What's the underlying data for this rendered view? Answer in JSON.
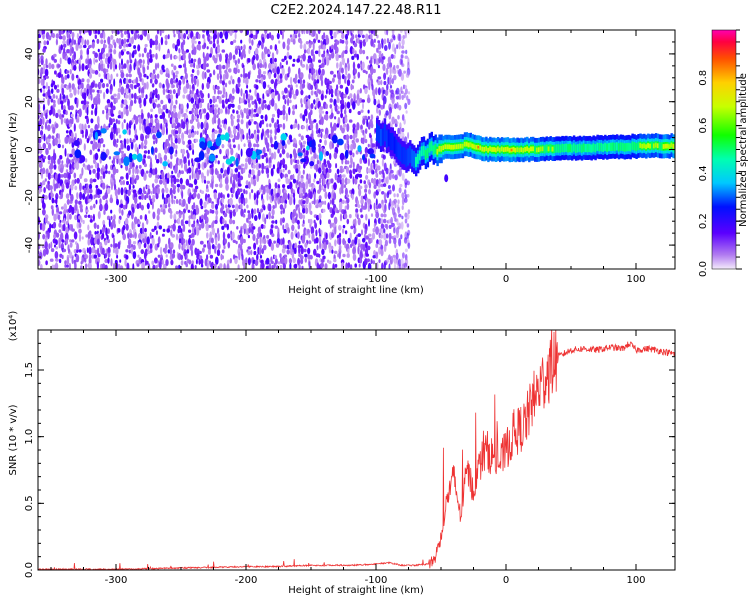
{
  "title": "C2E2.2024.147.22.48.R11",
  "chart_data": [
    {
      "type": "heatmap",
      "xlabel": "Height of straight line (km)",
      "ylabel": "Frequency (Hz)",
      "xlim": [
        -360,
        130
      ],
      "ylim": [
        -50,
        50
      ],
      "xticks": [
        -300,
        -200,
        -100,
        0,
        100
      ],
      "yticks": [
        -40,
        -20,
        0,
        20,
        40
      ],
      "noise_region_x": [
        -360,
        -75
      ],
      "tone_band": [
        {
          "x": -100,
          "y": 7,
          "amp": 0.4
        },
        {
          "x": -90,
          "y": 5,
          "amp": 0.3
        },
        {
          "x": -80,
          "y": -2,
          "amp": 0.35
        },
        {
          "x": -70,
          "y": -4,
          "amp": 0.45
        },
        {
          "x": -60,
          "y": 0,
          "amp": 0.6
        },
        {
          "x": -45,
          "y": 1,
          "amp": 0.8
        },
        {
          "x": -30,
          "y": 2,
          "amp": 0.75
        },
        {
          "x": -15,
          "y": 0,
          "amp": 0.85
        },
        {
          "x": 0,
          "y": 0,
          "amp": 0.8
        },
        {
          "x": 20,
          "y": 0,
          "amp": 0.75
        },
        {
          "x": 50,
          "y": 0.5,
          "amp": 0.6
        },
        {
          "x": 80,
          "y": 1,
          "amp": 0.55
        },
        {
          "x": 110,
          "y": 1.5,
          "amp": 0.7
        },
        {
          "x": 130,
          "y": 1.5,
          "amp": 0.8
        }
      ],
      "colorbar": {
        "label": "Normalized spectral amplitude",
        "range": [
          0,
          1
        ],
        "ticks": [
          0.0,
          0.2,
          0.4,
          0.6,
          0.8
        ]
      }
    },
    {
      "type": "line",
      "xlabel": "Height of straight line (km)",
      "ylabel": "SNR (10 * v/v)",
      "yscale_label": "(x10⁴)",
      "xlim": [
        -360,
        130
      ],
      "ylim": [
        0,
        1.8
      ],
      "xticks": [
        -300,
        -200,
        -100,
        0,
        100
      ],
      "yticks": [
        0.0,
        0.5,
        1.0,
        1.5
      ],
      "series": [
        {
          "color": "#ee3333",
          "x": [
            -360,
            -300,
            -250,
            -200,
            -180,
            -150,
            -120,
            -100,
            -90,
            -80,
            -70,
            -60,
            -55,
            -50,
            -45,
            -40,
            -35,
            -30,
            -25,
            -20,
            -15,
            -10,
            -5,
            0,
            5,
            10,
            15,
            20,
            25,
            30,
            35,
            40,
            50,
            60,
            70,
            80,
            90,
            95,
            100,
            110,
            120,
            130
          ],
          "values": [
            0.0,
            0.0,
            0.01,
            0.02,
            0.02,
            0.03,
            0.03,
            0.04,
            0.05,
            0.03,
            0.03,
            0.04,
            0.08,
            0.25,
            0.55,
            0.7,
            0.4,
            0.75,
            0.6,
            0.8,
            0.9,
            0.85,
            0.8,
            0.9,
            1.0,
            1.05,
            1.1,
            1.25,
            1.35,
            1.45,
            1.55,
            1.6,
            1.65,
            1.66,
            1.65,
            1.67,
            1.66,
            1.7,
            1.65,
            1.66,
            1.64,
            1.62
          ]
        }
      ]
    }
  ]
}
